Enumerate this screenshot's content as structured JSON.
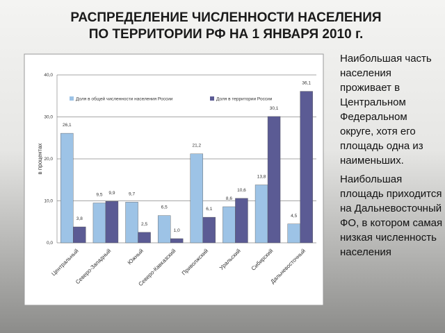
{
  "title_lines": [
    "РАСПРЕДЕЛЕНИЕ ЧИСЛЕННОСТИ НАСЕЛЕНИЯ",
    "ПО ТЕРРИТОРИИ РФ НА 1 ЯНВАРЯ 2010 г."
  ],
  "side_text": [
    "Наибольшая часть населения проживает в Центральном Федеральном округе, хотя его площадь одна из наименьших.",
    "Наибольшая площадь приходится на Дальневосточный ФО, в котором самая низкая численность населения"
  ],
  "chart_data": {
    "type": "bar",
    "ylabel": "в процентах",
    "categories": [
      "Центральный",
      "Северо-Западный",
      "Южный",
      "Северо-Кавказский",
      "Приволжский",
      "Уральский",
      "Сибирский",
      "Дальневосточный"
    ],
    "series": [
      {
        "name": "Доля в общей численности населения России",
        "color": "#9dc3e6",
        "values": [
          26.1,
          9.5,
          9.7,
          6.5,
          21.2,
          8.6,
          13.8,
          4.5
        ],
        "value_labels": [
          "26,1",
          "9,5",
          "9,7",
          "6,5",
          "21,2",
          "8,6",
          "13,8",
          "4,5"
        ]
      },
      {
        "name": "Доля в территории России",
        "color": "#5b5b94",
        "values": [
          3.8,
          9.9,
          2.5,
          1.0,
          6.1,
          10.6,
          30.1,
          36.1
        ],
        "value_labels": [
          "3,8",
          "9,9",
          "2,5",
          "1,0",
          "6,1",
          "10,6",
          "30,1",
          "36,1"
        ]
      }
    ],
    "ylim": [
      0,
      40
    ],
    "yticks": [
      {
        "value": 0,
        "label": "0,0"
      },
      {
        "value": 10,
        "label": "10,0"
      },
      {
        "value": 20,
        "label": "20,0"
      },
      {
        "value": 30,
        "label": "30,0"
      },
      {
        "value": 40,
        "label": "40,0"
      }
    ],
    "grid": true,
    "legend": "top"
  }
}
